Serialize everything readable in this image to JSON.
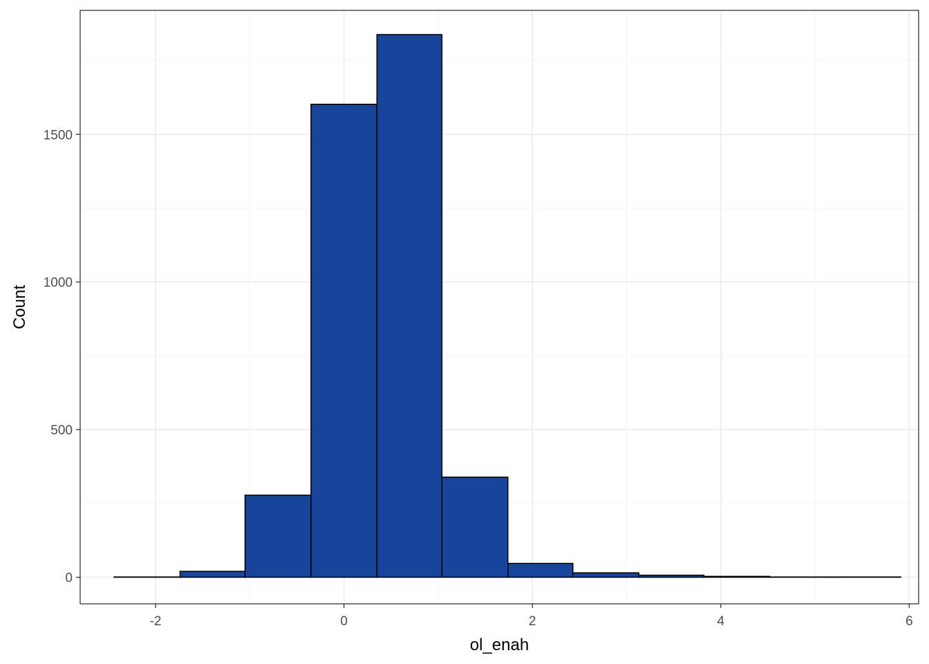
{
  "chart_data": {
    "type": "bar",
    "subtype": "histogram",
    "title": "",
    "xlabel": "ol_enah",
    "ylabel": "Count",
    "xlim": [
      -2.8,
      6.1
    ],
    "ylim": [
      -90,
      1920
    ],
    "x_ticks": [
      -2,
      0,
      2,
      4,
      6
    ],
    "y_ticks": [
      0,
      500,
      1000,
      1500
    ],
    "x_minor": [
      -1,
      1,
      3,
      5
    ],
    "y_minor": [
      250,
      750,
      1250,
      1750
    ],
    "grid": true,
    "legend": "none",
    "bins": [
      {
        "x0": -2.44,
        "x1": -1.74,
        "count": 1
      },
      {
        "x0": -1.74,
        "x1": -1.05,
        "count": 20
      },
      {
        "x0": -1.05,
        "x1": -0.35,
        "count": 278
      },
      {
        "x0": -0.35,
        "x1": 0.35,
        "count": 1602
      },
      {
        "x0": 0.35,
        "x1": 1.04,
        "count": 1838
      },
      {
        "x0": 1.04,
        "x1": 1.74,
        "count": 339
      },
      {
        "x0": 1.74,
        "x1": 2.43,
        "count": 47
      },
      {
        "x0": 2.43,
        "x1": 3.13,
        "count": 15
      },
      {
        "x0": 3.13,
        "x1": 3.82,
        "count": 7
      },
      {
        "x0": 3.82,
        "x1": 4.52,
        "count": 3
      },
      {
        "x0": 4.52,
        "x1": 5.21,
        "count": 1
      },
      {
        "x0": 5.21,
        "x1": 5.91,
        "count": 1
      }
    ],
    "colors": {
      "fill": "#184499",
      "outline": "#000000",
      "grid_major": "#ebebeb",
      "grid_minor": "#f4f4f4",
      "panel_border": "#333333"
    }
  }
}
